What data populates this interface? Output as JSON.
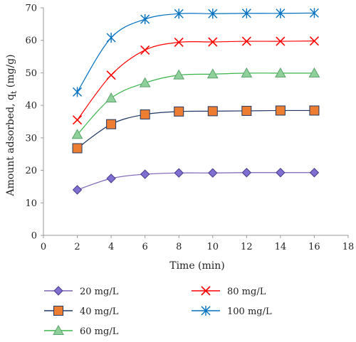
{
  "chart_data": {
    "type": "line",
    "title": "",
    "xlabel": "Time (min)",
    "ylabel": "Amount adsorbed, q",
    "ylabel_sub": "t",
    "ylabel_unit": " (mg/g)",
    "xlim": [
      0,
      18
    ],
    "ylim": [
      0,
      70
    ],
    "xticks": [
      0,
      2,
      4,
      6,
      8,
      10,
      12,
      14,
      16,
      18
    ],
    "yticks": [
      0,
      10,
      20,
      30,
      40,
      50,
      60,
      70
    ],
    "grid": false,
    "legend_position": "bottom",
    "x": [
      2,
      4,
      6,
      8,
      10,
      12,
      14,
      16
    ],
    "series": [
      {
        "name": "20 mg/L",
        "marker": "diamond",
        "color": "#7b62b8",
        "marker_fill": "#7f6fd0",
        "values": [
          14.0,
          17.5,
          18.8,
          19.2,
          19.2,
          19.3,
          19.3,
          19.3
        ]
      },
      {
        "name": "40 mg/L",
        "marker": "square",
        "color": "#1f3864",
        "marker_fill": "#ed7d31",
        "values": [
          26.8,
          34.2,
          37.2,
          38.1,
          38.2,
          38.3,
          38.4,
          38.4
        ]
      },
      {
        "name": "60 mg/L",
        "marker": "triangle",
        "color": "#39b54a",
        "marker_fill": "#8fcf9a",
        "values": [
          31.0,
          42.2,
          46.9,
          49.3,
          49.6,
          49.9,
          49.9,
          49.9
        ]
      },
      {
        "name": "80 mg/L",
        "marker": "x",
        "color": "#ff0000",
        "marker_fill": "#ff0000",
        "values": [
          35.5,
          49.3,
          57.0,
          59.4,
          59.5,
          59.7,
          59.7,
          59.8
        ]
      },
      {
        "name": "100 mg/L",
        "marker": "asterisk",
        "color": "#0070c0",
        "marker_fill": "#2e75b6",
        "values": [
          44.1,
          60.8,
          66.5,
          68.2,
          68.2,
          68.3,
          68.3,
          68.4
        ]
      }
    ]
  }
}
